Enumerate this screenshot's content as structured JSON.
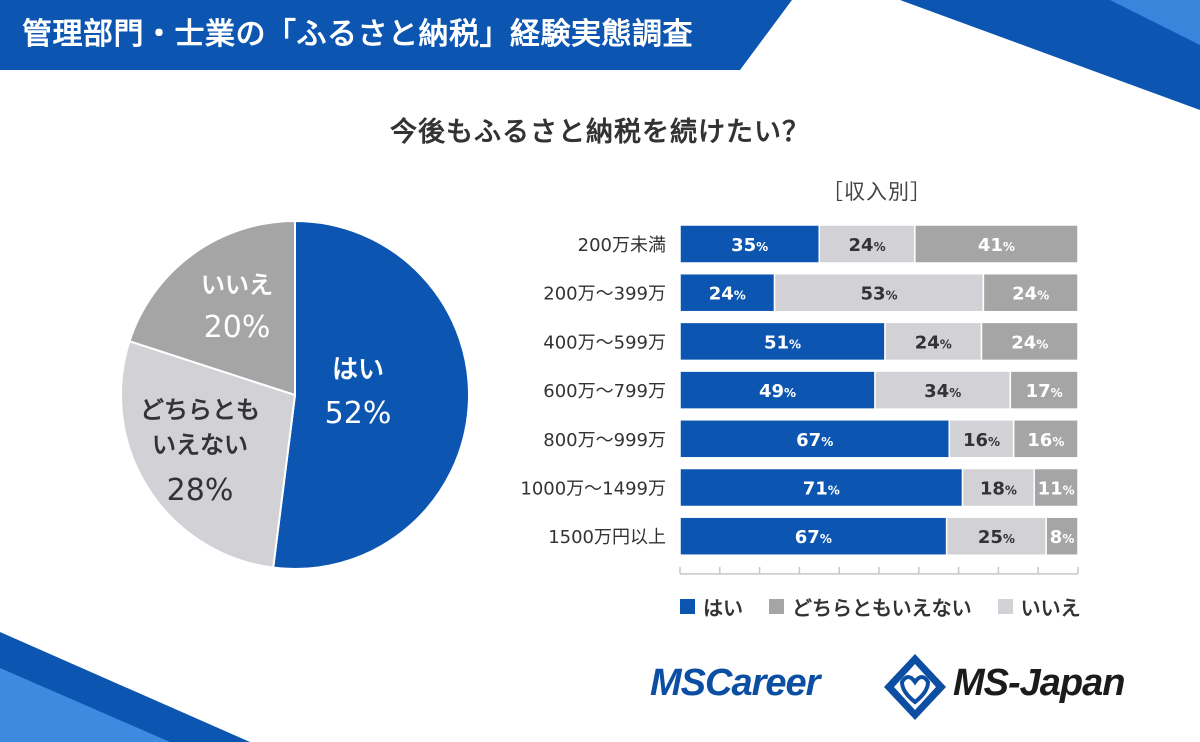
{
  "header": {
    "title": "管理部門・士業の「ふるさと納税」経験実態調査"
  },
  "colors": {
    "yes": "#0c56b1",
    "neutral": "#a5a5a5",
    "no": "#d2d2d6",
    "banner": "#0c56b1",
    "accent": "#3d8be0",
    "text": "#333333"
  },
  "question": "今後もふるさと納税を続けたい？",
  "subtitle": "［収入別］",
  "chart_data": [
    {
      "type": "pie",
      "title": "今後もふるさと納税を続けたい？",
      "slices": [
        {
          "label": "はい",
          "value": 52,
          "value_label": "52%",
          "color": "#0c56b1",
          "text_color": "#ffffff"
        },
        {
          "label": "どちらとも\nいえない",
          "value": 28,
          "value_label": "28%",
          "color": "#d2d2d6",
          "text_color": "#333333"
        },
        {
          "label": "いいえ",
          "value": 20,
          "value_label": "20%",
          "color": "#a5a5a5",
          "text_color": "#ffffff"
        }
      ]
    },
    {
      "type": "bar",
      "orientation": "horizontal",
      "stacked": true,
      "title": "［収入別］",
      "categories": [
        "200万未満",
        "200万～399万",
        "400万～599万",
        "600万～799万",
        "800万～999万",
        "1000万～1499万",
        "1500万円以上"
      ],
      "series": [
        {
          "name": "はい",
          "color": "#0c56b1",
          "label_color": "#ffffff",
          "values": [
            35,
            24,
            51,
            49,
            67,
            71,
            67
          ]
        },
        {
          "name": "いいえ",
          "color": "#d2d2d6",
          "label_color": "#333333",
          "values": [
            24,
            53,
            24,
            34,
            16,
            18,
            25
          ]
        },
        {
          "name": "どちらともいえない",
          "color": "#a5a5a5",
          "label_color": "#ffffff",
          "values": [
            41,
            24,
            24,
            17,
            16,
            11,
            8
          ]
        }
      ],
      "unit": "%",
      "xlim": [
        0,
        100
      ]
    }
  ],
  "legend": [
    {
      "label": "はい",
      "color": "#0c56b1"
    },
    {
      "label": "どちらともいえない",
      "color": "#a5a5a5"
    },
    {
      "label": "いいえ",
      "color": "#d2d2d6"
    }
  ],
  "logos": {
    "left": "MSCareer",
    "right": "MS-Japan"
  }
}
